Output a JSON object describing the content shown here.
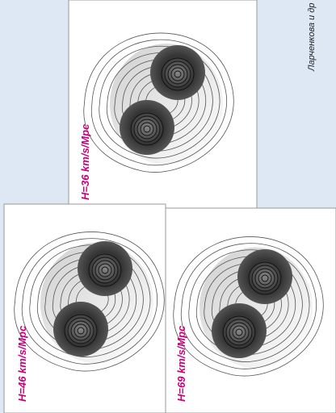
{
  "panels": [
    {
      "label": "H=36 km/s/Mpc"
    },
    {
      "label": "H=46 km/s/Mpc"
    },
    {
      "label": "H=69 km/s/Mpc"
    }
  ],
  "caption": "Ларченкова и др"
}
